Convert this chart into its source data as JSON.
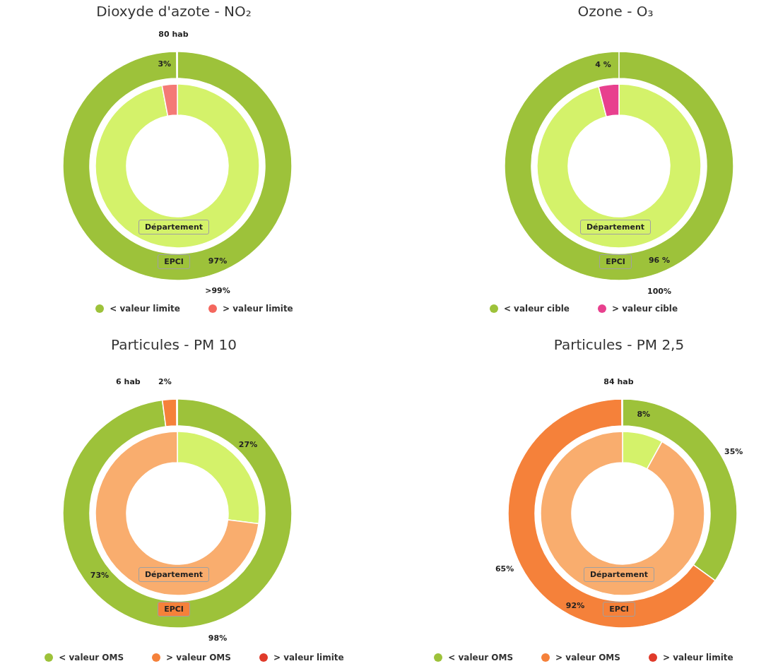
{
  "chart_data": [
    {
      "type": "donut",
      "title": "Dioxyde d'azote - NO₂",
      "categories": [
        "< valeur limite",
        "> valeur limite"
      ],
      "legend": "bottom",
      "series": [
        {
          "name": "Département",
          "colors": [
            "#d4f26a",
            "#f47a76"
          ],
          "values": [
            97,
            3
          ],
          "value_labels": [
            "97%",
            "3%"
          ]
        },
        {
          "name": "EPCI",
          "colors": [
            "#9dc23a",
            "#f4675e"
          ],
          "values": [
            99.9,
            0.1
          ],
          "value_labels": [
            ">99%",
            null
          ]
        }
      ],
      "annotations": [
        "80 hab"
      ]
    },
    {
      "type": "donut",
      "title": "Ozone - O₃",
      "categories": [
        "< valeur cible",
        "> valeur cible"
      ],
      "legend": "bottom",
      "series": [
        {
          "name": "Département",
          "colors": [
            "#d4f26a",
            "#e8408e"
          ],
          "values": [
            96,
            4
          ],
          "value_labels": [
            "96 %",
            "4 %"
          ]
        },
        {
          "name": "EPCI",
          "colors": [
            "#9dc23a",
            "#d6217a"
          ],
          "values": [
            100,
            0
          ],
          "value_labels": [
            "100%",
            null
          ]
        }
      ]
    },
    {
      "type": "donut",
      "title": "Particules - PM 10",
      "categories": [
        "< valeur OMS",
        "> valeur OMS",
        "> valeur limite"
      ],
      "legend": "bottom",
      "series": [
        {
          "name": "Département",
          "colors": [
            "#d4f26a",
            "#f9ad6e",
            "#e03a2a"
          ],
          "values": [
            27,
            73,
            0
          ],
          "value_labels": [
            "27%",
            "73%",
            null
          ]
        },
        {
          "name": "EPCI",
          "colors": [
            "#9dc23a",
            "#f5813a",
            "#e03a2a"
          ],
          "values": [
            97.9,
            2,
            0.1
          ],
          "value_labels": [
            "98%",
            "2%",
            null
          ]
        }
      ],
      "annotations": [
        "6 hab"
      ]
    },
    {
      "type": "donut",
      "title": "Particules - PM 2,5",
      "categories": [
        "< valeur OMS",
        "> valeur OMS",
        "> valeur limite"
      ],
      "legend": "bottom",
      "series": [
        {
          "name": "Département",
          "colors": [
            "#d4f26a",
            "#f9ad6e",
            "#e03a2a"
          ],
          "values": [
            8,
            92,
            0
          ],
          "value_labels": [
            "8%",
            "92%",
            null
          ]
        },
        {
          "name": "EPCI",
          "colors": [
            "#9dc23a",
            "#f5813a",
            "#e03a2a"
          ],
          "values": [
            35,
            64.9,
            0.1
          ],
          "value_labels": [
            "35%",
            "65%",
            null
          ]
        }
      ],
      "annotations": [
        "84 hab"
      ]
    }
  ]
}
